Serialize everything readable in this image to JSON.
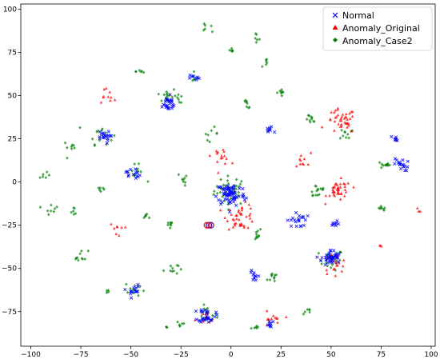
{
  "chart_data": {
    "type": "scatter",
    "xlim": [
      -105,
      102
    ],
    "ylim": [
      -95,
      103
    ],
    "xticks": [
      -100,
      -75,
      -50,
      -25,
      0,
      25,
      50,
      75,
      100
    ],
    "yticks": [
      -75,
      -50,
      -25,
      0,
      25,
      50,
      75,
      100
    ],
    "xtick_labels": [
      "−100",
      "−75",
      "−50",
      "−25",
      "0",
      "25",
      "50",
      "75",
      "100"
    ],
    "ytick_labels": [
      "−75",
      "−50",
      "−25",
      "0",
      "25",
      "50",
      "75",
      "100"
    ],
    "grid": false,
    "legend_position": "top-right",
    "series": [
      {
        "name": "Normal",
        "marker": "x",
        "color": "#0000ff",
        "clusters": [
          {
            "x": 0,
            "y": -7,
            "n": 70,
            "spread": 6
          },
          {
            "x": 50,
            "y": -44,
            "n": 40,
            "spread": 4
          },
          {
            "x": -12,
            "y": -77,
            "n": 30,
            "spread": 3.5
          },
          {
            "x": -32,
            "y": 45,
            "n": 25,
            "spread": 4
          },
          {
            "x": -64,
            "y": 26,
            "n": 18,
            "spread": 3
          },
          {
            "x": 85,
            "y": 10,
            "n": 18,
            "spread": 3
          },
          {
            "x": 33,
            "y": -22,
            "n": 20,
            "spread": 4
          },
          {
            "x": -49,
            "y": 5,
            "n": 14,
            "spread": 3
          },
          {
            "x": -49,
            "y": -63,
            "n": 14,
            "spread": 3
          },
          {
            "x": 82,
            "y": 25,
            "n": 8,
            "spread": 1.5
          },
          {
            "x": 52,
            "y": -25,
            "n": 8,
            "spread": 2
          },
          {
            "x": 12,
            "y": -54,
            "n": 10,
            "spread": 3
          },
          {
            "x": -18,
            "y": 60,
            "n": 8,
            "spread": 2
          },
          {
            "x": 20,
            "y": -83,
            "n": 8,
            "spread": 2
          },
          {
            "x": 19,
            "y": 30,
            "n": 8,
            "spread": 2
          }
        ]
      },
      {
        "name": "Anomaly_Original",
        "marker": "triangle",
        "color": "#ff0000",
        "clusters": [
          {
            "x": 55,
            "y": 35,
            "n": 40,
            "spread": 6
          },
          {
            "x": 54,
            "y": -5,
            "n": 40,
            "spread": 5
          },
          {
            "x": 5,
            "y": -20,
            "n": 40,
            "spread": 6
          },
          {
            "x": 52,
            "y": -47,
            "n": 20,
            "spread": 5
          },
          {
            "x": -5,
            "y": 15,
            "n": 15,
            "spread": 4
          },
          {
            "x": 20,
            "y": -80,
            "n": 12,
            "spread": 4
          },
          {
            "x": -62,
            "y": 50,
            "n": 10,
            "spread": 4
          },
          {
            "x": -57,
            "y": -27,
            "n": 8,
            "spread": 3
          },
          {
            "x": 35,
            "y": 12,
            "n": 10,
            "spread": 4
          },
          {
            "x": 94,
            "y": -16,
            "n": 3,
            "spread": 1.5
          },
          {
            "x": 74,
            "y": -37,
            "n": 3,
            "spread": 1.5
          },
          {
            "x": -13,
            "y": -80,
            "n": 10,
            "spread": 4
          }
        ]
      },
      {
        "name": "Anomaly_Case2",
        "marker": "diamond",
        "color": "#008000",
        "clusters": [
          {
            "x": 0,
            "y": -5,
            "n": 40,
            "spread": 7
          },
          {
            "x": 50,
            "y": -45,
            "n": 25,
            "spread": 5
          },
          {
            "x": -12,
            "y": -77,
            "n": 20,
            "spread": 4
          },
          {
            "x": 75,
            "y": -16,
            "n": 8,
            "spread": 2
          },
          {
            "x": 40,
            "y": 36,
            "n": 10,
            "spread": 2
          },
          {
            "x": 58,
            "y": 28,
            "n": 10,
            "spread": 3
          },
          {
            "x": 77,
            "y": 10,
            "n": 12,
            "spread": 2
          },
          {
            "x": 12,
            "y": -30,
            "n": 10,
            "spread": 3
          },
          {
            "x": 43,
            "y": -5,
            "n": 15,
            "spread": 4
          },
          {
            "x": 22,
            "y": -55,
            "n": 10,
            "spread": 3
          },
          {
            "x": -32,
            "y": 50,
            "n": 15,
            "spread": 4
          },
          {
            "x": -65,
            "y": 28,
            "n": 15,
            "spread": 5
          },
          {
            "x": -48,
            "y": 5,
            "n": 12,
            "spread": 4
          },
          {
            "x": -48,
            "y": -62,
            "n": 12,
            "spread": 4
          },
          {
            "x": -30,
            "y": -50,
            "n": 10,
            "spread": 3
          },
          {
            "x": -30,
            "y": -25,
            "n": 8,
            "spread": 3
          },
          {
            "x": -75,
            "y": -43,
            "n": 10,
            "spread": 3
          },
          {
            "x": -90,
            "y": -15,
            "n": 8,
            "spread": 3
          },
          {
            "x": -78,
            "y": -17,
            "n": 6,
            "spread": 2
          },
          {
            "x": -93,
            "y": 3,
            "n": 6,
            "spread": 2
          },
          {
            "x": -80,
            "y": 20,
            "n": 8,
            "spread": 3
          },
          {
            "x": -65,
            "y": -4,
            "n": 6,
            "spread": 2
          },
          {
            "x": -23,
            "y": 2,
            "n": 8,
            "spread": 3
          },
          {
            "x": -10,
            "y": 28,
            "n": 8,
            "spread": 3
          },
          {
            "x": 8,
            "y": 45,
            "n": 8,
            "spread": 2
          },
          {
            "x": 25,
            "y": 52,
            "n": 8,
            "spread": 2
          },
          {
            "x": 12,
            "y": 83,
            "n": 6,
            "spread": 2
          },
          {
            "x": -12,
            "y": 90,
            "n": 6,
            "spread": 2
          },
          {
            "x": 0,
            "y": 75,
            "n": 6,
            "spread": 2
          },
          {
            "x": 18,
            "y": 69,
            "n": 6,
            "spread": 2
          },
          {
            "x": 38,
            "y": -75,
            "n": 6,
            "spread": 2
          },
          {
            "x": 12,
            "y": -84,
            "n": 6,
            "spread": 2
          },
          {
            "x": -25,
            "y": -82,
            "n": 6,
            "spread": 2
          },
          {
            "x": -32,
            "y": -84,
            "n": 3,
            "spread": 1
          },
          {
            "x": -62,
            "y": -63,
            "n": 4,
            "spread": 1.5
          },
          {
            "x": -45,
            "y": 64,
            "n": 6,
            "spread": 2
          },
          {
            "x": -18,
            "y": 60,
            "n": 6,
            "spread": 2
          },
          {
            "x": -42,
            "y": -20,
            "n": 6,
            "spread": 2
          },
          {
            "x": -26,
            "y": 48,
            "n": 6,
            "spread": 2
          }
        ]
      }
    ],
    "single_points": [
      {
        "x": -11,
        "y": -25,
        "marker": "circle",
        "color": "#000080"
      },
      {
        "x": -10,
        "y": -25,
        "marker": "circle",
        "color": "#800080"
      },
      {
        "x": -12,
        "y": -25,
        "marker": "circle",
        "color": "#ff0000"
      }
    ]
  }
}
